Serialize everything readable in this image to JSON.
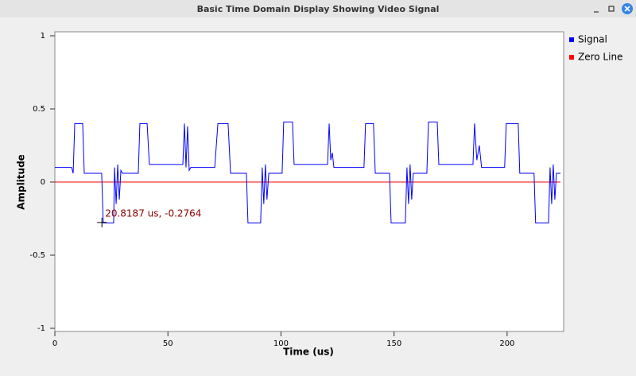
{
  "window": {
    "title": "Basic Time Domain Display Showing Video Signal"
  },
  "chart_data": {
    "type": "line",
    "xlabel": "Time (us)",
    "ylabel": "Amplitude",
    "xlim": [
      0,
      225
    ],
    "ylim": [
      -1,
      1
    ],
    "xticks": [
      0,
      50,
      100,
      150,
      200
    ],
    "yticks": [
      -1,
      -0.5,
      0,
      0.5,
      1
    ],
    "x": [
      0,
      7.4,
      8.1,
      8.8,
      12.3,
      13.0,
      20.7,
      21.4,
      26.0,
      26.4,
      27.1,
      27.8,
      28.5,
      29.2,
      29.9,
      36.9,
      37.6,
      40.8,
      41.8,
      56.6,
      57.3,
      58.0,
      58.7,
      59.4,
      60.1,
      70.7,
      72.1,
      76.6,
      77.7,
      84.7,
      85.4,
      91.0,
      91.7,
      92.4,
      93.1,
      93.8,
      94.6,
      100.5,
      101.2,
      105.1,
      105.8,
      120.6,
      121.3,
      122.0,
      122.7,
      123.4,
      136.7,
      137.4,
      140.9,
      141.7,
      148.0,
      148.7,
      155.0,
      155.7,
      156.4,
      157.1,
      157.8,
      158.5,
      164.5,
      165.2,
      169.1,
      169.8,
      184.9,
      185.6,
      186.6,
      187.7,
      188.7,
      198.9,
      199.6,
      204.9,
      205.6,
      211.9,
      212.6,
      218.3,
      219.0,
      219.7,
      220.4,
      221.1,
      221.8,
      223.6
    ],
    "series": [
      {
        "name": "Signal",
        "color": "#0000ff",
        "values": [
          0.1,
          0.1,
          0.06,
          0.4,
          0.4,
          0.06,
          0.06,
          -0.28,
          -0.28,
          0.1,
          -0.15,
          0.12,
          -0.12,
          0.08,
          0.06,
          0.06,
          0.4,
          0.4,
          0.12,
          0.12,
          0.4,
          0.1,
          0.38,
          0.08,
          0.1,
          0.1,
          0.4,
          0.4,
          0.06,
          0.06,
          -0.28,
          -0.28,
          0.1,
          -0.15,
          0.12,
          -0.12,
          0.06,
          0.06,
          0.41,
          0.41,
          0.12,
          0.12,
          0.4,
          0.15,
          0.2,
          0.1,
          0.1,
          0.4,
          0.4,
          0.06,
          0.06,
          -0.28,
          -0.28,
          0.1,
          -0.15,
          0.12,
          -0.12,
          0.06,
          0.06,
          0.41,
          0.41,
          0.12,
          0.12,
          0.4,
          0.15,
          0.25,
          0.1,
          0.1,
          0.4,
          0.4,
          0.06,
          0.06,
          -0.28,
          -0.28,
          0.1,
          -0.15,
          0.12,
          -0.12,
          0.06,
          0.06
        ]
      },
      {
        "name": "Zero Line",
        "color": "#ff0000",
        "x": [
          0,
          223.6
        ],
        "values": [
          0,
          0
        ]
      }
    ],
    "legend": "top-right",
    "annotation": {
      "text": "20.8187 us, -0.2764",
      "x": 20.8187,
      "y": -0.2764
    }
  }
}
